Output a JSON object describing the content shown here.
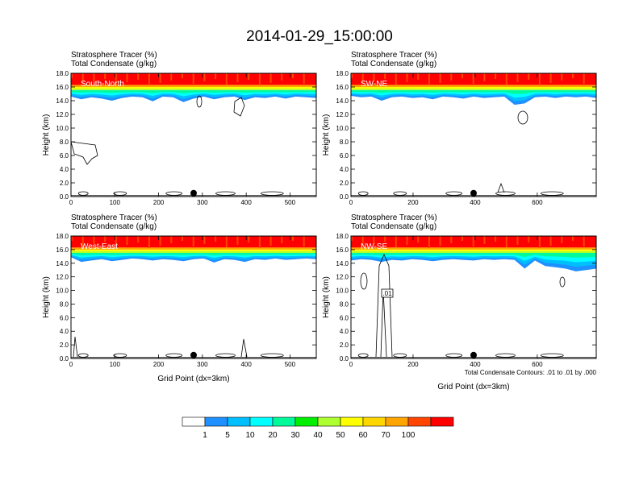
{
  "figure": {
    "title": "2014-01-29_15:00:00"
  },
  "colors": {
    "levels": [
      "#ffffff",
      "#1e90ff",
      "#00bfff",
      "#00ffff",
      "#00fa9a",
      "#00ee00",
      "#adff2f",
      "#ffff00",
      "#ffd700",
      "#ffa500",
      "#ff4500",
      "#ff0000"
    ],
    "axis": "#000000",
    "contour": "#000000"
  },
  "colorbar": {
    "labels": [
      "1",
      "5",
      "10",
      "20",
      "30",
      "40",
      "50",
      "60",
      "70",
      "100"
    ]
  },
  "chart_data": [
    {
      "type": "heatmap",
      "panel_label": "South-North",
      "left_title_1": "Stratosphere Tracer   (%)",
      "left_title_2": "Total Condensate   (g/kg)",
      "ylabel": "Height (km)",
      "xlabel": "",
      "xlim": [
        0,
        560
      ],
      "ylim": [
        0,
        18
      ],
      "xticks": [
        0,
        100,
        200,
        300,
        400,
        500
      ],
      "yticks": [
        "0.0",
        "2.0",
        "4.0",
        "6.0",
        "8.0",
        "10.0",
        "12.0",
        "14.0",
        "16.0",
        "18.0"
      ],
      "marker_x": 280,
      "tracer_bottom_km": [
        14.6,
        14.2,
        14.5,
        14.3,
        14.0,
        14.4,
        14.6,
        14.5,
        13.9,
        14.6,
        14.5,
        13.8,
        14.3,
        14.6,
        14.2,
        14.5,
        14.6,
        14.1,
        14.5,
        14.4,
        14.6,
        14.3,
        14.6,
        14.5,
        14.4
      ],
      "note": ""
    },
    {
      "type": "heatmap",
      "panel_label": "SW-NE",
      "left_title_1": "Stratosphere Tracer   (%)",
      "left_title_2": "Total Condensate   (g/kg)",
      "ylabel": "Height (km)",
      "xlabel": "",
      "xlim": [
        0,
        790
      ],
      "ylim": [
        0,
        18
      ],
      "xticks": [
        0,
        200,
        400,
        600
      ],
      "yticks": [
        "0.0",
        "2.0",
        "4.0",
        "6.0",
        "8.0",
        "10.0",
        "12.0",
        "14.0",
        "16.0",
        "18.0"
      ],
      "marker_x": 395,
      "tracer_bottom_km": [
        14.7,
        14.5,
        14.6,
        14.0,
        14.5,
        14.6,
        14.4,
        14.5,
        14.2,
        14.6,
        14.5,
        14.3,
        14.6,
        14.4,
        14.5,
        14.6,
        13.4,
        13.6,
        14.5,
        14.6,
        14.4,
        14.6,
        14.5,
        14.6,
        14.4
      ],
      "note": ""
    },
    {
      "type": "heatmap",
      "panel_label": "West-East",
      "left_title_1": "Stratosphere Tracer   (%)",
      "left_title_2": "Total Condensate   (g/kg)",
      "ylabel": "Height (km)",
      "xlabel": "Grid Point (dx=3km)",
      "xlim": [
        0,
        560
      ],
      "ylim": [
        0,
        18
      ],
      "xticks": [
        0,
        100,
        200,
        300,
        400,
        500
      ],
      "yticks": [
        "0.0",
        "2.0",
        "4.0",
        "6.0",
        "8.0",
        "10.0",
        "12.0",
        "14.0",
        "16.0",
        "18.0"
      ],
      "marker_x": 280,
      "tracer_bottom_km": [
        14.9,
        14.2,
        14.4,
        14.6,
        14.3,
        14.5,
        14.7,
        14.6,
        14.4,
        14.6,
        14.5,
        14.3,
        14.6,
        14.7,
        14.1,
        14.6,
        14.5,
        14.2,
        14.6,
        14.5,
        14.7,
        14.5,
        14.6,
        14.7,
        14.6
      ],
      "note": ""
    },
    {
      "type": "heatmap",
      "panel_label": "NW-SE",
      "left_title_1": "Stratosphere Tracer   (%)",
      "left_title_2": "Total Condensate   (g/kg)",
      "ylabel": "Height (km)",
      "xlabel": "Grid Point (dx=3km)",
      "xlim": [
        0,
        790
      ],
      "ylim": [
        0,
        18
      ],
      "xticks": [
        0,
        200,
        400,
        600
      ],
      "yticks": [
        "0.0",
        "2.0",
        "4.0",
        "6.0",
        "8.0",
        "10.0",
        "12.0",
        "14.0",
        "16.0",
        "18.0"
      ],
      "marker_x": 395,
      "tracer_bottom_km": [
        14.4,
        14.6,
        14.5,
        14.2,
        14.5,
        14.4,
        14.6,
        14.5,
        14.3,
        14.5,
        14.6,
        14.5,
        14.4,
        14.6,
        14.5,
        14.6,
        14.5,
        13.2,
        14.4,
        13.6,
        13.4,
        13.2,
        12.8,
        13.0,
        13.2
      ],
      "note": "Total Condensate Contours: .01 to .01 by .000",
      "contour_label": ".01"
    }
  ]
}
